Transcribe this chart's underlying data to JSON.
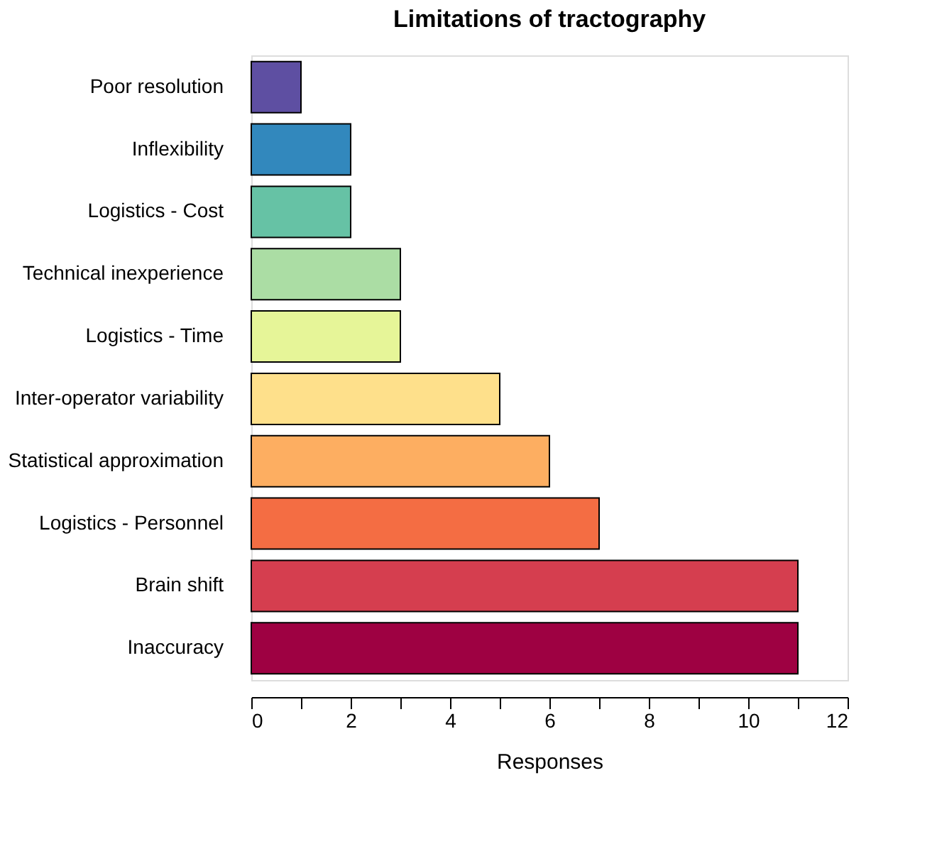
{
  "chart_data": {
    "type": "bar",
    "orientation": "horizontal",
    "title": "Limitations of tractography",
    "xlabel": "Responses",
    "categories": [
      "Poor resolution",
      "Inflexibility",
      "Logistics - Cost",
      "Technical inexperience",
      "Logistics - Time",
      "Inter-operator variability",
      "Statistical approximation",
      "Logistics - Personnel",
      "Brain shift",
      "Inaccuracy"
    ],
    "values": [
      1,
      2,
      2,
      3,
      3,
      5,
      6,
      7,
      11,
      11
    ],
    "colors": [
      "#5e4fa2",
      "#3288bd",
      "#66c2a5",
      "#abdda4",
      "#e6f598",
      "#fee08b",
      "#fdae61",
      "#f46d43",
      "#d53e4f",
      "#9e0142"
    ],
    "xlim": [
      0,
      12
    ],
    "xticks": [
      0,
      {
        "value": 1,
        "label": null
      },
      2,
      {
        "value": 3,
        "label": null
      },
      4,
      {
        "value": 5,
        "label": null
      },
      6,
      {
        "value": 7,
        "label": null
      },
      8,
      {
        "value": 9,
        "label": null
      },
      10,
      {
        "value": 11,
        "label": null
      },
      12
    ],
    "grid": false,
    "legend": false
  }
}
